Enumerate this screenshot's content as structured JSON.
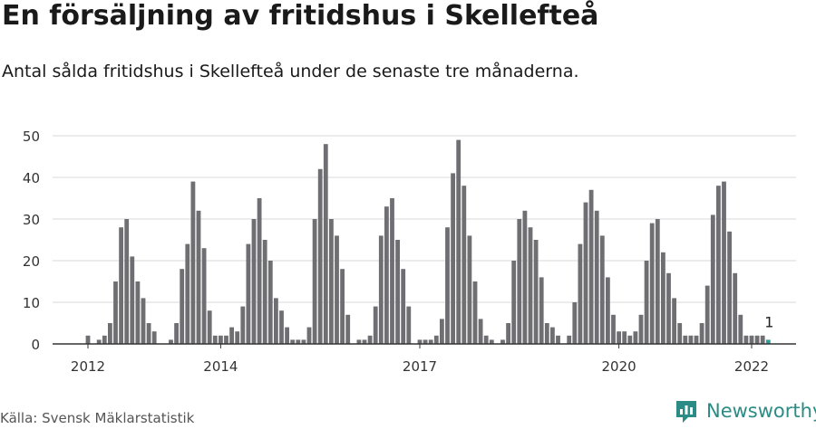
{
  "header": {
    "title": "En försäljning av fritidshus i Skellefteå",
    "subtitle": "Antal sålda fritidshus i Skellefteå under de senaste tre månaderna."
  },
  "footer": {
    "source": "Källa: Svensk Mäklarstatistik",
    "brand": "Newsworthy"
  },
  "colors": {
    "bar": "#6e6e73",
    "highlight": "#2aa198",
    "grid": "#d9d9d9",
    "axis": "#333333",
    "brand": "#2a8c85"
  },
  "chart_data": {
    "type": "bar",
    "title": "En försäljning av fritidshus i Skellefteå",
    "subtitle": "Antal sålda fritidshus i Skellefteå under de senaste tre månaderna.",
    "xlabel": "",
    "ylabel": "",
    "ylim": [
      0,
      50
    ],
    "yticks": [
      0,
      10,
      20,
      30,
      40,
      50
    ],
    "xtick_labels": [
      {
        "label": "2012",
        "index": 0
      },
      {
        "label": "2014",
        "index": 24
      },
      {
        "label": "2017",
        "index": 60
      },
      {
        "label": "2020",
        "index": 96
      },
      {
        "label": "2022",
        "index": 120
      }
    ],
    "grid": true,
    "values": [
      2,
      0,
      1,
      2,
      5,
      15,
      28,
      30,
      21,
      15,
      11,
      5,
      3,
      0,
      0,
      1,
      5,
      18,
      24,
      39,
      32,
      23,
      8,
      2,
      2,
      2,
      4,
      3,
      9,
      24,
      30,
      35,
      25,
      20,
      11,
      8,
      4,
      1,
      1,
      1,
      4,
      30,
      42,
      48,
      30,
      26,
      18,
      7,
      0,
      1,
      1,
      2,
      9,
      26,
      33,
      35,
      25,
      18,
      9,
      0,
      1,
      1,
      1,
      2,
      6,
      28,
      41,
      49,
      38,
      26,
      15,
      6,
      2,
      1,
      0,
      1,
      5,
      20,
      30,
      32,
      28,
      25,
      16,
      5,
      4,
      2,
      0,
      2,
      10,
      24,
      34,
      37,
      32,
      26,
      16,
      7,
      3,
      3,
      2,
      3,
      7,
      20,
      29,
      30,
      22,
      17,
      11,
      5,
      2,
      2,
      2,
      5,
      14,
      31,
      38,
      39,
      27,
      17,
      7,
      2,
      2,
      2,
      2,
      1
    ],
    "highlight_index": 123,
    "highlight_label": "1"
  }
}
